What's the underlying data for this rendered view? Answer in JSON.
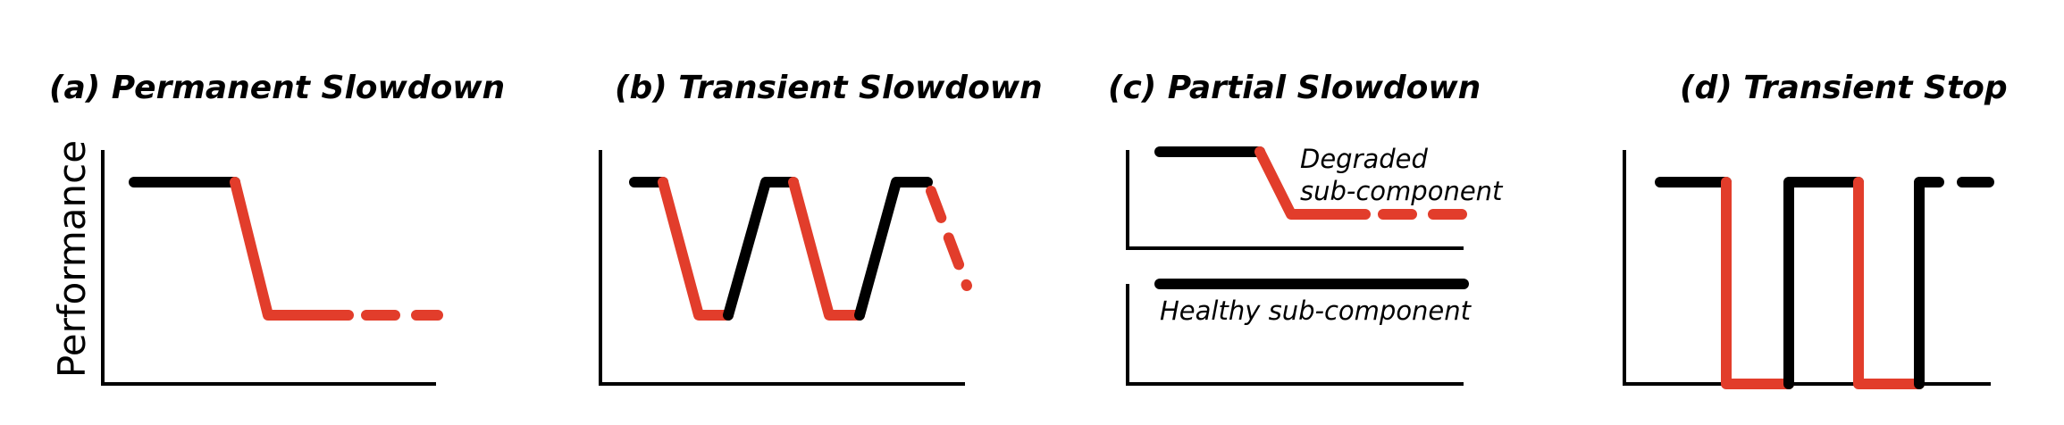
{
  "panels": [
    {
      "id": "a",
      "title": "(a) Permanent Slowdown"
    },
    {
      "id": "b",
      "title": "(b) Transient Slowdown"
    },
    {
      "id": "c",
      "title": "(c) Partial Slowdown",
      "degraded_label_line1": "Degraded",
      "degraded_label_line2": "sub-component",
      "healthy_label": "Healthy sub-component"
    },
    {
      "id": "d",
      "title": "(d) Transient Stop"
    }
  ],
  "y_axis_label": "Performance",
  "colors": {
    "normal": "#000000",
    "slowdown": "#e23d2b"
  }
}
